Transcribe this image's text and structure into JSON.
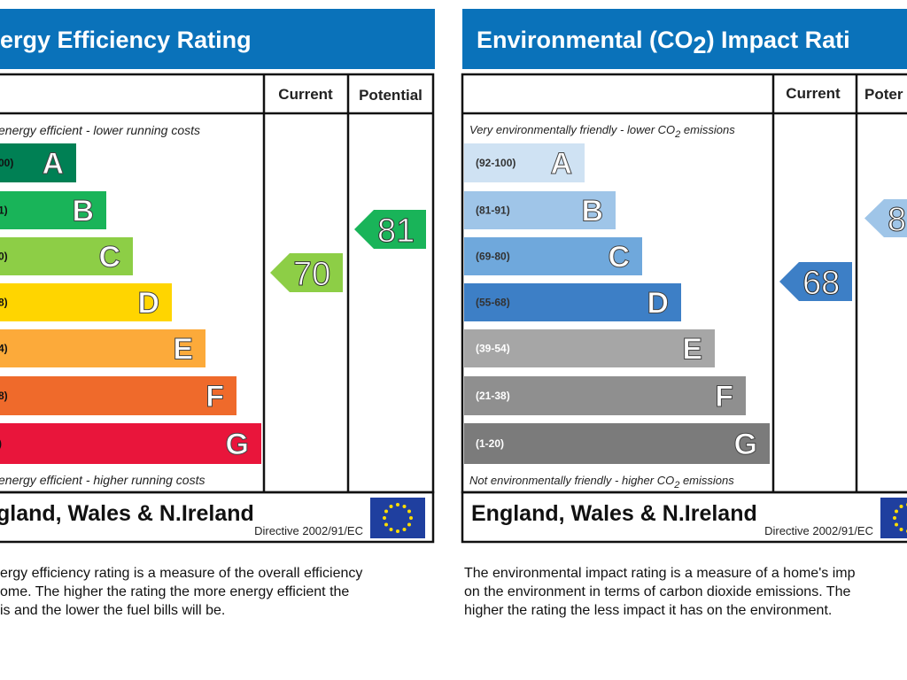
{
  "energy": {
    "title": "ergy Efficiency Rating",
    "current_header": "Current",
    "potential_header": "Potential",
    "top_note": "energy efficient - lower running costs",
    "bands": [
      {
        "range": "00)",
        "letter": "A",
        "color": "#008054"
      },
      {
        "range": "1)",
        "letter": "B",
        "color": "#19b459"
      },
      {
        "range": "0)",
        "letter": "C",
        "color": "#8dce46"
      },
      {
        "range": "8)",
        "letter": "D",
        "color": "#ffd500"
      },
      {
        "range": "4)",
        "letter": "E",
        "color": "#fcaa3a"
      },
      {
        "range": "8)",
        "letter": "F",
        "color": "#ef6a2b"
      },
      {
        "range": ")",
        "letter": "G",
        "color": "#e9153b"
      }
    ],
    "bottom_note": "energy efficient - higher running costs",
    "current": "70",
    "potential": "81",
    "footer": "gland, Wales & N.Ireland",
    "directive": "Directive 2002/91/EC",
    "description": [
      "ergy efficiency rating is a measure of the overall efficiency",
      "ome. The higher the rating the more energy efficient the",
      "is and the lower the fuel bills will be."
    ]
  },
  "environment": {
    "title": [
      "Environmental (CO",
      "2",
      ") Impact Rati"
    ],
    "current_header": "Current",
    "potential_header": "Poter",
    "top_note": [
      "Very environmentally friendly - lower CO",
      "2",
      " emissions"
    ],
    "bands": [
      {
        "range": "(92-100)",
        "letter": "A",
        "color": "#cfe2f3"
      },
      {
        "range": "(81-91)",
        "letter": "B",
        "color": "#9fc5e8"
      },
      {
        "range": "(69-80)",
        "letter": "C",
        "color": "#6fa8dc"
      },
      {
        "range": "(55-68)",
        "letter": "D",
        "color": "#3d7fc6"
      },
      {
        "range": "(39-54)",
        "letter": "E",
        "color": "#a6a6a6"
      },
      {
        "range": "(21-38)",
        "letter": "F",
        "color": "#8f8f8f"
      },
      {
        "range": "(1-20)",
        "letter": "G",
        "color": "#7b7b7b"
      }
    ],
    "bottom_note": [
      "Not environmentally friendly - higher CO",
      "2",
      " emissions"
    ],
    "current": "68",
    "potential": "8",
    "footer": "England, Wales & N.Ireland",
    "directive": "Directive 2002/91/EC",
    "description": [
      "The environmental impact rating is a measure of a home's imp",
      "on the environment in terms of carbon dioxide emissions. The",
      "higher the rating the less impact it has on the environment."
    ]
  }
}
